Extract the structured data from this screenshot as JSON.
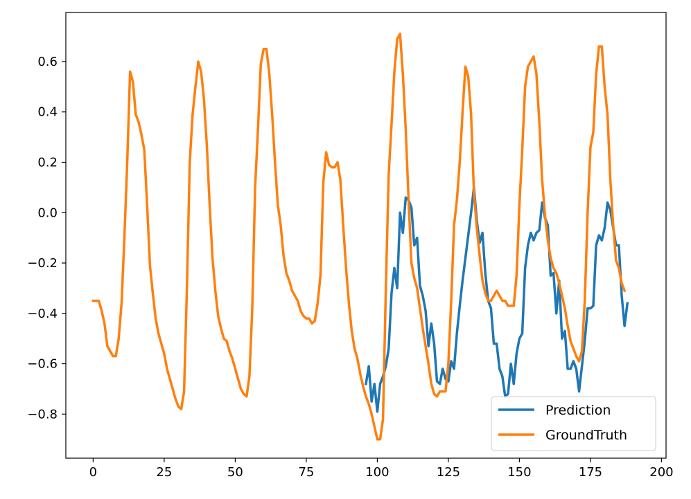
{
  "chart_data": {
    "type": "line",
    "title": "",
    "xlabel": "",
    "ylabel": "",
    "xlim": [
      -9.6,
      201.6
    ],
    "ylim": [
      -0.975,
      0.795
    ],
    "x_ticks": [
      0,
      25,
      50,
      75,
      100,
      125,
      150,
      175,
      200
    ],
    "x_tick_labels": [
      "0",
      "25",
      "50",
      "75",
      "100",
      "125",
      "150",
      "175",
      "200"
    ],
    "y_ticks": [
      0.6,
      0.4,
      0.2,
      0.0,
      -0.2,
      -0.4,
      -0.6,
      -0.8
    ],
    "y_tick_labels": [
      "0.6",
      "0.4",
      "0.2",
      "0.0",
      "−0.2",
      "−0.4",
      "−0.6",
      "−0.8"
    ],
    "grid": false,
    "legend_position": "lower-right",
    "series": [
      {
        "name": "Prediction",
        "color": "#1f77b4",
        "x_start": 96,
        "values": [
          -0.68,
          -0.61,
          -0.75,
          -0.68,
          -0.79,
          -0.68,
          -0.65,
          -0.61,
          -0.54,
          -0.32,
          -0.22,
          -0.3,
          0.0,
          -0.08,
          0.06,
          0.05,
          0.02,
          -0.13,
          -0.1,
          -0.29,
          -0.33,
          -0.39,
          -0.53,
          -0.44,
          -0.52,
          -0.67,
          -0.68,
          -0.62,
          -0.66,
          -0.67,
          -0.59,
          -0.62,
          -0.48,
          -0.37,
          -0.27,
          -0.18,
          -0.09,
          0.0,
          0.1,
          -0.03,
          -0.12,
          -0.08,
          -0.24,
          -0.35,
          -0.38,
          -0.52,
          -0.52,
          -0.62,
          -0.65,
          -0.73,
          -0.72,
          -0.6,
          -0.68,
          -0.56,
          -0.5,
          -0.48,
          -0.22,
          -0.13,
          -0.08,
          -0.11,
          -0.08,
          -0.07,
          0.04,
          -0.02,
          -0.05,
          -0.25,
          -0.24,
          -0.4,
          -0.27,
          -0.5,
          -0.47,
          -0.62,
          -0.62,
          -0.59,
          -0.62,
          -0.71,
          -0.61,
          -0.51,
          -0.38,
          -0.38,
          -0.37,
          -0.13,
          -0.09,
          -0.11,
          -0.06,
          0.04,
          0.01,
          -0.06,
          -0.13,
          -0.13,
          -0.33,
          -0.45,
          -0.36
        ]
      },
      {
        "name": "GroundTruth",
        "color": "#ff7f0e",
        "x_start": 0,
        "values": [
          -0.35,
          -0.35,
          -0.35,
          -0.39,
          -0.44,
          -0.53,
          -0.55,
          -0.57,
          -0.57,
          -0.5,
          -0.36,
          -0.1,
          0.2,
          0.56,
          0.52,
          0.39,
          0.36,
          0.31,
          0.25,
          0.03,
          -0.21,
          -0.32,
          -0.42,
          -0.48,
          -0.52,
          -0.56,
          -0.62,
          -0.66,
          -0.7,
          -0.74,
          -0.77,
          -0.78,
          -0.71,
          -0.3,
          0.2,
          0.39,
          0.5,
          0.6,
          0.56,
          0.45,
          0.27,
          0.03,
          -0.18,
          -0.31,
          -0.41,
          -0.46,
          -0.5,
          -0.51,
          -0.55,
          -0.58,
          -0.62,
          -0.66,
          -0.7,
          -0.72,
          -0.73,
          -0.65,
          -0.38,
          0.1,
          0.33,
          0.59,
          0.65,
          0.65,
          0.55,
          0.39,
          0.2,
          0.03,
          -0.05,
          -0.17,
          -0.24,
          -0.27,
          -0.31,
          -0.33,
          -0.35,
          -0.39,
          -0.41,
          -0.42,
          -0.42,
          -0.44,
          -0.43,
          -0.36,
          -0.25,
          0.12,
          0.24,
          0.19,
          0.18,
          0.18,
          0.2,
          0.13,
          -0.05,
          -0.22,
          -0.36,
          -0.47,
          -0.54,
          -0.58,
          -0.64,
          -0.69,
          -0.73,
          -0.76,
          -0.8,
          -0.85,
          -0.9,
          -0.9,
          -0.82,
          -0.3,
          0.15,
          0.35,
          0.56,
          0.69,
          0.71,
          0.55,
          0.33,
          0.05,
          -0.2,
          -0.26,
          -0.3,
          -0.38,
          -0.46,
          -0.53,
          -0.6,
          -0.68,
          -0.72,
          -0.73,
          -0.71,
          -0.71,
          -0.71,
          -0.6,
          -0.35,
          -0.05,
          0.05,
          0.2,
          0.4,
          0.58,
          0.54,
          0.39,
          0.08,
          -0.06,
          -0.17,
          -0.27,
          -0.32,
          -0.35,
          -0.35,
          -0.33,
          -0.31,
          -0.33,
          -0.35,
          -0.35,
          -0.37,
          -0.37,
          -0.37,
          -0.25,
          0.03,
          0.25,
          0.5,
          0.58,
          0.6,
          0.62,
          0.55,
          0.36,
          0.13,
          -0.01,
          -0.11,
          -0.18,
          -0.22,
          -0.24,
          -0.28,
          -0.33,
          -0.38,
          -0.45,
          -0.51,
          -0.54,
          -0.57,
          -0.59,
          -0.55,
          -0.35,
          0.0,
          0.26,
          0.32,
          0.55,
          0.66,
          0.66,
          0.5,
          0.39,
          0.13,
          -0.05,
          -0.19,
          -0.22,
          -0.28,
          -0.31
        ]
      }
    ]
  }
}
